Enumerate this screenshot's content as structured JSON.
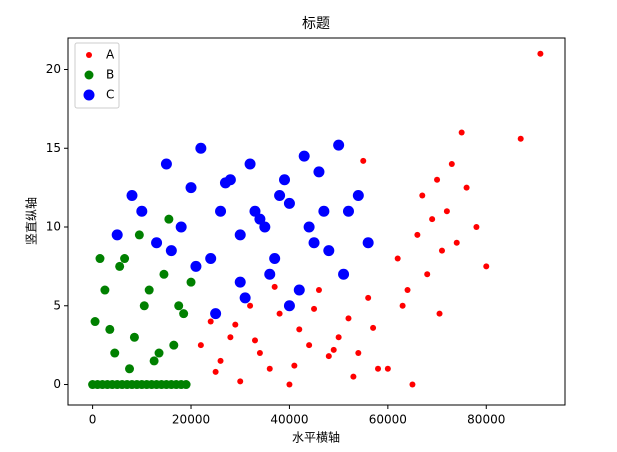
{
  "chart_data": {
    "type": "scatter",
    "title": "标题",
    "x_label": "水平横轴",
    "y_label": "竖直纵轴",
    "xlim": [
      -5000,
      96000
    ],
    "ylim": [
      -1.3,
      22.0
    ],
    "xticks": [
      0,
      20000,
      40000,
      60000,
      80000
    ],
    "yticks": [
      0,
      5,
      10,
      15,
      20
    ],
    "legend": "upper left",
    "grid": false,
    "series": [
      {
        "name": "A",
        "color": "#ff0000",
        "x": [
          22000,
          24000,
          26000,
          28000,
          30000,
          32000,
          34000,
          36000,
          38000,
          40000,
          42000,
          44000,
          46000,
          48000,
          50000,
          52000,
          54000,
          56000,
          58000,
          25000,
          29000,
          33000,
          37000,
          41000,
          45000,
          49000,
          53000,
          57000,
          62000,
          64000,
          66000,
          67000,
          68000,
          69000,
          70000,
          71000,
          72000,
          73000,
          74000,
          75000,
          76000,
          78000,
          80000,
          91000,
          87000,
          55000,
          65000,
          60000,
          63000,
          70500
        ],
        "values": [
          2.5,
          4,
          1.5,
          3,
          0.2,
          5,
          2,
          1,
          4.5,
          0,
          3.5,
          2.5,
          6,
          1.8,
          3,
          4.2,
          2,
          5.5,
          1,
          0.8,
          3.8,
          2.8,
          6.2,
          1.2,
          4.8,
          2.2,
          0.5,
          3.6,
          8,
          6,
          9.5,
          12,
          7,
          10.5,
          13,
          8.5,
          11,
          14,
          9,
          16,
          12.5,
          10,
          7.5,
          21,
          15.6,
          14.2,
          0,
          1,
          5,
          4.5
        ]
      },
      {
        "name": "B",
        "color": "#008000",
        "x": [
          0,
          1000,
          2000,
          3000,
          4000,
          5000,
          6000,
          7000,
          8000,
          9000,
          10000,
          11000,
          12000,
          13000,
          14000,
          15000,
          16000,
          17000,
          18000,
          19000,
          500,
          2500,
          4500,
          6500,
          8500,
          10500,
          12500,
          14500,
          16500,
          18500,
          1500,
          3500,
          5500,
          7500,
          9500,
          11500,
          13500,
          15500,
          17500,
          20000
        ],
        "values": [
          0,
          0,
          0,
          0,
          0,
          0,
          0,
          0,
          0,
          0,
          0,
          0,
          0,
          0,
          0,
          0,
          0,
          0,
          0,
          0,
          4,
          6,
          2,
          8,
          3,
          5,
          1.5,
          7,
          2.5,
          4.5,
          8,
          3.5,
          7.5,
          1,
          9.5,
          6,
          2,
          10.5,
          5,
          6.5
        ]
      },
      {
        "name": "C",
        "color": "#0000ff",
        "x": [
          5000,
          8000,
          10000,
          13000,
          15000,
          18000,
          20000,
          22000,
          24000,
          26000,
          28000,
          30000,
          32000,
          34000,
          36000,
          38000,
          40000,
          42000,
          44000,
          46000,
          48000,
          50000,
          52000,
          54000,
          56000,
          25000,
          30000,
          35000,
          40000,
          45000,
          33000,
          37000,
          27000,
          43000,
          31000,
          39000,
          21000,
          47000,
          51000,
          16000
        ],
        "values": [
          9.5,
          12,
          11,
          9,
          14,
          10,
          12.5,
          15,
          8,
          11,
          13,
          9.5,
          14,
          10.5,
          7,
          12,
          11.5,
          6,
          10,
          13.5,
          8.5,
          15.2,
          11,
          12,
          9,
          4.5,
          6.5,
          10,
          5,
          9,
          11,
          8,
          12.8,
          14.5,
          5.5,
          13,
          7.5,
          11,
          7,
          8.5
        ]
      }
    ]
  }
}
